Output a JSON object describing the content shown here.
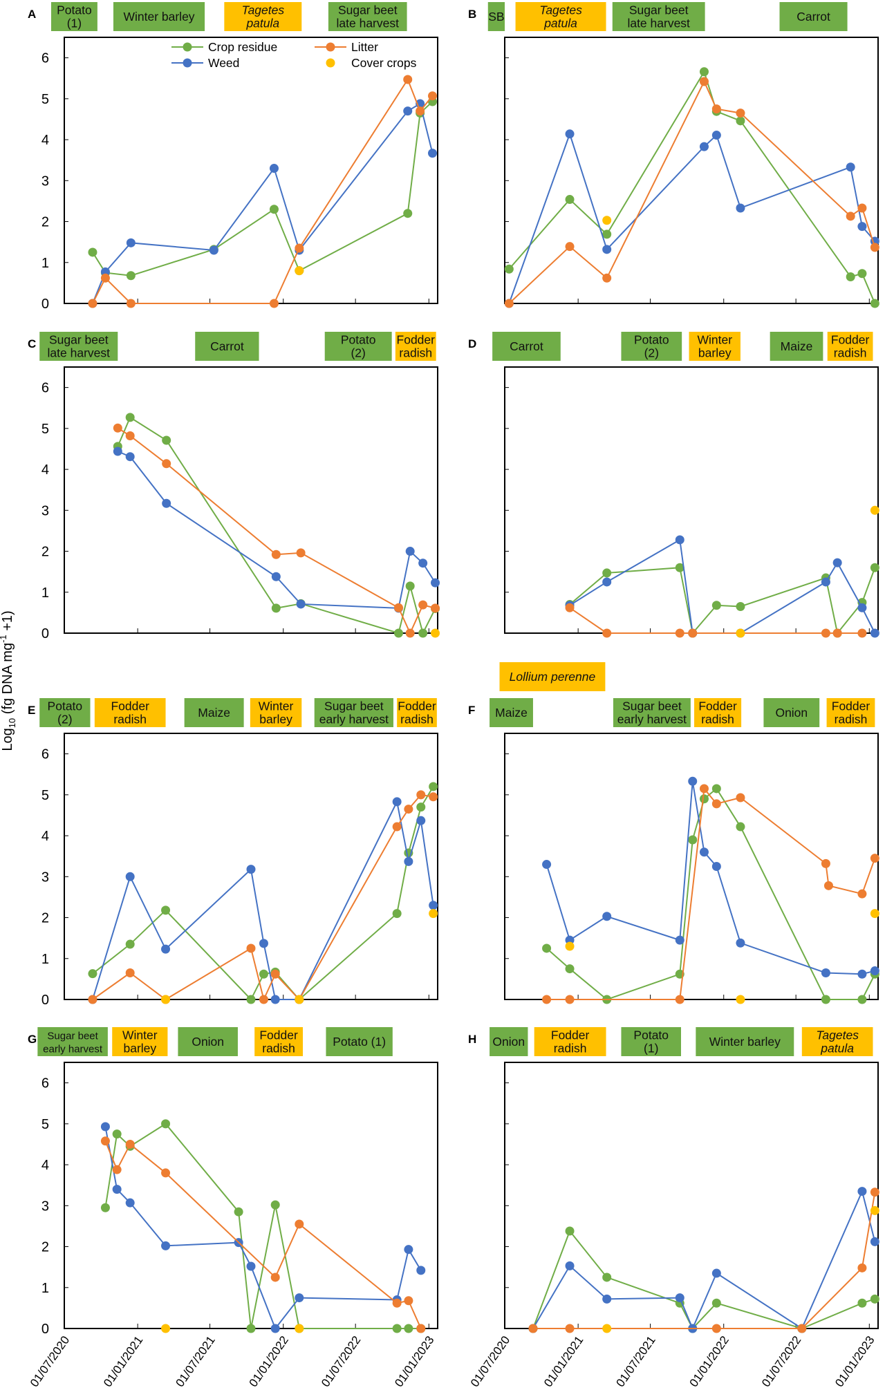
{
  "y_axis_label": "Log10 (fg DNA mg-1 +1)",
  "colors": {
    "crop_band": "#70AD47",
    "cover_band": "#FFC000",
    "crop_residue": "#70AD47",
    "litter": "#ED7D31",
    "weed": "#4472C4",
    "cover_crops": "#FFC000"
  },
  "chart_data": {
    "type": "line",
    "x_type": "date",
    "xlim": [
      "2020-07-01",
      "2023-01-23"
    ],
    "ylim": [
      0,
      6.5
    ],
    "y_ticks": [
      "0",
      "1",
      "2",
      "3",
      "4",
      "5",
      "6"
    ],
    "x_ticks": [
      {
        "date": "2020-07-01",
        "label": "01/07/2020"
      },
      {
        "date": "2021-01-01",
        "label": "01/01/2021"
      },
      {
        "date": "2021-07-01",
        "label": "01/07/2021"
      },
      {
        "date": "2022-01-01",
        "label": "01/01/2022"
      },
      {
        "date": "2022-07-01",
        "label": "01/07/2022"
      },
      {
        "date": "2023-01-01",
        "label": "01/01/2023"
      }
    ],
    "legend": {
      "placement": "top (panel A)",
      "entries": [
        {
          "key": "crop",
          "name": "Crop residue",
          "line": true
        },
        {
          "key": "litter",
          "name": "Litter",
          "line": true
        },
        {
          "key": "weed",
          "name": "Weed",
          "line": true
        },
        {
          "key": "cover",
          "name": "Cover crops",
          "line": false
        }
      ]
    },
    "panels": [
      {
        "letter": "A",
        "dates": [
          "2020-09-10",
          "2020-10-12",
          "2020-12-15",
          "2021-07-11",
          "2021-12-09",
          "2022-02-10",
          "2022-11-09",
          "2022-12-10",
          "2023-01-10"
        ],
        "crop": [
          1.25,
          0.75,
          0.68,
          1.32,
          2.3,
          0.8,
          2.2,
          4.65,
          4.93
        ],
        "weed": [
          0,
          0.77,
          1.48,
          1.3,
          3.3,
          1.3,
          4.7,
          4.88,
          3.67
        ],
        "litter": [
          0,
          0.62,
          0,
          null,
          0,
          1.35,
          5.47,
          4.7,
          5.07
        ],
        "cover": [
          null,
          null,
          null,
          null,
          null,
          0.8,
          null,
          null,
          null
        ],
        "bands": [
          {
            "lines": [
              "Potato",
              "(1)"
            ],
            "type": "crop",
            "start": "2020-05-29",
            "end": "2020-09-22"
          },
          {
            "lines": [
              "Winter barley"
            ],
            "type": "crop",
            "start": "2020-11-01",
            "end": "2021-06-18"
          },
          {
            "lines": [
              "Tagetes",
              "patula"
            ],
            "type": "cover",
            "italic": true,
            "start": "2021-08-06",
            "end": "2022-02-16"
          },
          {
            "lines": [
              "Sugar beet",
              "late harvest"
            ],
            "type": "crop",
            "start": "2022-04-24",
            "end": "2022-11-07"
          }
        ]
      },
      {
        "letter": "B",
        "dates": [
          "2020-07-12",
          "2020-12-11",
          "2021-03-14",
          "2021-11-13",
          "2021-12-14",
          "2022-02-12",
          "2022-11-15",
          "2022-12-14",
          "2023-01-15"
        ],
        "crop": [
          0.84,
          2.54,
          1.69,
          5.66,
          4.69,
          4.46,
          0.65,
          0.73,
          0
        ],
        "weed": [
          0,
          4.14,
          1.32,
          3.83,
          4.11,
          2.33,
          3.33,
          1.88,
          1.52
        ],
        "litter": [
          0,
          1.39,
          0.62,
          5.42,
          4.75,
          4.65,
          2.13,
          2.33,
          1.37
        ],
        "cover": [
          null,
          null,
          2.03,
          null,
          null,
          null,
          null,
          null,
          null
        ],
        "bands": [
          {
            "lines": [
              "SB"
            ],
            "type": "crop",
            "start": "2020-05-20",
            "end": "2020-07-01"
          },
          {
            "lines": [
              "Tagetes",
              "patula"
            ],
            "type": "cover",
            "italic": true,
            "start": "2020-07-28",
            "end": "2021-03-12"
          },
          {
            "lines": [
              "Sugar beet",
              "late harvest"
            ],
            "type": "crop",
            "start": "2021-03-28",
            "end": "2021-11-15"
          },
          {
            "lines": [
              "Carrot"
            ],
            "type": "crop",
            "start": "2022-05-21",
            "end": "2022-11-07"
          }
        ]
      },
      {
        "letter": "C",
        "dates": [
          "2020-11-12",
          "2020-12-13",
          "2021-03-14",
          "2021-12-14",
          "2022-02-14",
          "2022-10-17",
          "2022-11-15",
          "2022-12-17",
          "2023-01-17"
        ],
        "crop": [
          4.56,
          5.27,
          4.71,
          0.61,
          0.72,
          0,
          1.15,
          0,
          0.6
        ],
        "weed": [
          4.44,
          4.31,
          3.17,
          1.38,
          0.71,
          0.61,
          2.0,
          1.71,
          1.23
        ],
        "litter": [
          5.01,
          4.82,
          4.14,
          1.92,
          1.96,
          0.62,
          0,
          0.69,
          0.61
        ],
        "cover": [
          null,
          null,
          null,
          null,
          null,
          null,
          null,
          null,
          0
        ],
        "bands": [
          {
            "lines": [
              "Sugar beet",
              "late harvest"
            ],
            "type": "crop",
            "start": "2020-04-30",
            "end": "2020-11-12"
          },
          {
            "lines": [
              "Carrot"
            ],
            "type": "crop",
            "start": "2021-05-25",
            "end": "2021-11-01"
          },
          {
            "lines": [
              "Potato",
              "(2)"
            ],
            "type": "crop",
            "start": "2022-04-15",
            "end": "2022-09-30"
          },
          {
            "lines": [
              "Fodder",
              "radish"
            ],
            "type": "cover",
            "start": "2022-10-09",
            "end": "2023-01-19"
          }
        ]
      },
      {
        "letter": "D",
        "dates": [
          "2020-12-11",
          "2021-03-14",
          "2021-09-13",
          "2021-10-15",
          "2021-12-14",
          "2022-02-12",
          "2022-09-14",
          "2022-10-13",
          "2022-12-14",
          "2023-01-15"
        ],
        "crop": [
          0.7,
          1.47,
          1.6,
          0,
          0.68,
          0.65,
          1.35,
          0,
          0.75,
          1.6
        ],
        "weed": [
          0.68,
          1.25,
          2.28,
          0,
          null,
          0,
          1.25,
          1.72,
          0.62,
          0
        ],
        "litter": [
          0.62,
          0,
          0,
          0,
          null,
          null,
          0,
          0,
          0,
          null
        ],
        "cover": [
          null,
          null,
          null,
          null,
          null,
          0,
          null,
          null,
          null,
          3.0
        ],
        "bands": [
          {
            "lines": [
              "Carrot"
            ],
            "type": "crop",
            "start": "2020-05-31",
            "end": "2020-11-18"
          },
          {
            "lines": [
              "Potato",
              "(2)"
            ],
            "type": "crop",
            "start": "2021-04-19",
            "end": "2021-09-18"
          },
          {
            "lines": [
              "Winter",
              "barley"
            ],
            "type": "cover",
            "start": "2021-10-06",
            "end": "2022-02-12"
          },
          {
            "lines": [
              "Maize"
            ],
            "type": "crop",
            "start": "2022-04-27",
            "end": "2022-09-07"
          },
          {
            "lines": [
              "Fodder",
              "radish"
            ],
            "type": "cover",
            "start": "2022-09-18",
            "end": "2023-01-10"
          }
        ]
      },
      {
        "letter": "E",
        "dates": [
          "2020-09-10",
          "2020-12-13",
          "2021-03-12",
          "2021-10-12",
          "2021-11-13",
          "2021-12-12",
          "2022-02-10",
          "2022-10-13",
          "2022-11-11",
          "2022-12-12",
          "2023-01-12"
        ],
        "crop": [
          0.63,
          1.35,
          2.18,
          0,
          0.62,
          0.67,
          0,
          2.1,
          3.58,
          4.7,
          5.2
        ],
        "weed": [
          0,
          3.0,
          1.23,
          3.18,
          1.37,
          0,
          0,
          4.83,
          3.37,
          4.37,
          2.3
        ],
        "litter": [
          0,
          0.65,
          0,
          1.25,
          0,
          0.62,
          0,
          4.22,
          4.65,
          5.0,
          4.95
        ],
        "cover": [
          null,
          null,
          0,
          null,
          null,
          null,
          0,
          null,
          null,
          null,
          2.1
        ],
        "bands": [
          {
            "lines": [
              "Potato",
              "(2)"
            ],
            "type": "crop",
            "start": "2020-04-30",
            "end": "2020-09-04"
          },
          {
            "lines": [
              "Fodder",
              "radish"
            ],
            "type": "cover",
            "start": "2020-09-15",
            "end": "2021-03-12"
          },
          {
            "lines": [
              "Maize"
            ],
            "type": "crop",
            "start": "2021-04-28",
            "end": "2021-09-24"
          },
          {
            "lines": [
              "Winter",
              "barley"
            ],
            "type": "cover",
            "start": "2021-10-10",
            "end": "2022-02-16"
          },
          {
            "lines": [
              "Sugar beet",
              "early harvest"
            ],
            "type": "crop",
            "start": "2022-03-20",
            "end": "2022-10-04"
          },
          {
            "lines": [
              "Fodder",
              "radish"
            ],
            "type": "cover",
            "start": "2022-10-13",
            "end": "2023-01-21"
          }
        ]
      },
      {
        "letter": "F",
        "dates": [
          "2020-10-14",
          "2020-12-11",
          "2021-03-14",
          "2021-09-13",
          "2021-10-15",
          "2021-11-13",
          "2021-12-14",
          "2022-02-12",
          "2022-09-14",
          "2022-09-21",
          "2022-12-14",
          "2023-01-15"
        ],
        "crop": [
          1.25,
          0.75,
          0,
          0.62,
          3.9,
          4.9,
          5.15,
          4.22,
          0,
          null,
          0,
          0.62
        ],
        "weed": [
          3.3,
          1.45,
          2.03,
          1.45,
          5.33,
          3.6,
          3.25,
          1.38,
          0.65,
          null,
          0.62,
          0.7
        ],
        "litter": [
          0,
          0,
          null,
          0,
          null,
          5.15,
          4.78,
          4.93,
          3.32,
          2.78,
          2.58,
          3.45
        ],
        "cover": [
          null,
          1.3,
          null,
          null,
          null,
          null,
          null,
          0,
          null,
          null,
          null,
          2.1
        ],
        "extra_band": {
          "lines": [
            "Lollium perenne"
          ],
          "type": "cover",
          "italic": true,
          "start": "2020-06-18",
          "end": "2021-03-10"
        },
        "bands": [
          {
            "lines": [
              "Maize"
            ],
            "type": "crop",
            "start": "2020-05-24",
            "end": "2020-09-10"
          },
          {
            "lines": [
              "Sugar beet",
              "early harvest"
            ],
            "type": "crop",
            "start": "2021-03-30",
            "end": "2021-10-10"
          },
          {
            "lines": [
              "Fodder",
              "radish"
            ],
            "type": "cover",
            "start": "2021-10-19",
            "end": "2022-02-14"
          },
          {
            "lines": [
              "Onion"
            ],
            "type": "crop",
            "start": "2022-04-11",
            "end": "2022-08-29"
          },
          {
            "lines": [
              "Fodder",
              "radish"
            ],
            "type": "cover",
            "start": "2022-09-16",
            "end": "2023-01-15"
          }
        ]
      },
      {
        "letter": "G",
        "dates": [
          "2020-10-12",
          "2020-11-10",
          "2020-12-13",
          "2021-03-12",
          "2021-09-11",
          "2021-10-12",
          "2021-12-12",
          "2022-02-10",
          "2022-10-13",
          "2022-11-11",
          "2022-12-12"
        ],
        "crop": [
          2.95,
          4.75,
          4.45,
          5.0,
          2.85,
          0,
          3.02,
          0,
          0,
          0,
          0
        ],
        "weed": [
          4.93,
          3.4,
          3.07,
          2.02,
          2.1,
          1.52,
          0,
          0.75,
          0.7,
          1.93,
          1.42
        ],
        "litter": [
          4.58,
          3.88,
          4.5,
          3.8,
          null,
          null,
          1.25,
          2.55,
          0.62,
          0.68,
          0
        ],
        "cover": [
          null,
          null,
          null,
          0,
          null,
          null,
          null,
          0,
          null,
          null,
          null
        ],
        "bands": [
          {
            "lines": [
              "Sugar beet",
              "early harvest"
            ],
            "type": "crop",
            "small": true,
            "start": "2020-04-25",
            "end": "2020-10-18"
          },
          {
            "lines": [
              "Winter",
              "barley"
            ],
            "type": "cover",
            "start": "2020-10-29",
            "end": "2021-03-17"
          },
          {
            "lines": [
              "Onion"
            ],
            "type": "crop",
            "start": "2021-04-12",
            "end": "2021-09-09"
          },
          {
            "lines": [
              "Fodder",
              "radish"
            ],
            "type": "cover",
            "start": "2021-10-21",
            "end": "2022-02-19"
          },
          {
            "lines": [
              "Potato (1)"
            ],
            "type": "crop",
            "start": "2022-04-18",
            "end": "2022-10-02"
          }
        ]
      },
      {
        "letter": "H",
        "dates": [
          "2020-09-10",
          "2020-12-11",
          "2021-03-14",
          "2021-09-13",
          "2021-10-15",
          "2021-12-14",
          "2022-07-16",
          "2022-12-14",
          "2023-01-15"
        ],
        "crop": [
          0,
          2.38,
          1.25,
          0.62,
          0,
          0.62,
          0,
          0.62,
          0.72
        ],
        "weed": [
          0,
          1.53,
          0.72,
          0.75,
          0,
          1.35,
          0,
          3.35,
          2.12
        ],
        "litter": [
          0,
          0,
          null,
          null,
          null,
          0,
          0,
          1.48,
          3.33
        ],
        "cover": [
          null,
          null,
          0,
          null,
          null,
          null,
          null,
          null,
          2.88
        ],
        "bands": [
          {
            "lines": [
              "Onion"
            ],
            "type": "crop",
            "start": "2020-05-24",
            "end": "2020-08-28"
          },
          {
            "lines": [
              "Fodder",
              "radish"
            ],
            "type": "cover",
            "start": "2020-09-13",
            "end": "2021-03-12"
          },
          {
            "lines": [
              "Potato",
              "(1)"
            ],
            "type": "crop",
            "start": "2021-04-19",
            "end": "2021-09-16"
          },
          {
            "lines": [
              "Winter barley"
            ],
            "type": "crop",
            "start": "2021-10-23",
            "end": "2022-06-26"
          },
          {
            "lines": [
              "Tagetes",
              "patula"
            ],
            "type": "cover",
            "italic": true,
            "start": "2022-07-16",
            "end": "2023-01-10"
          }
        ]
      }
    ]
  }
}
